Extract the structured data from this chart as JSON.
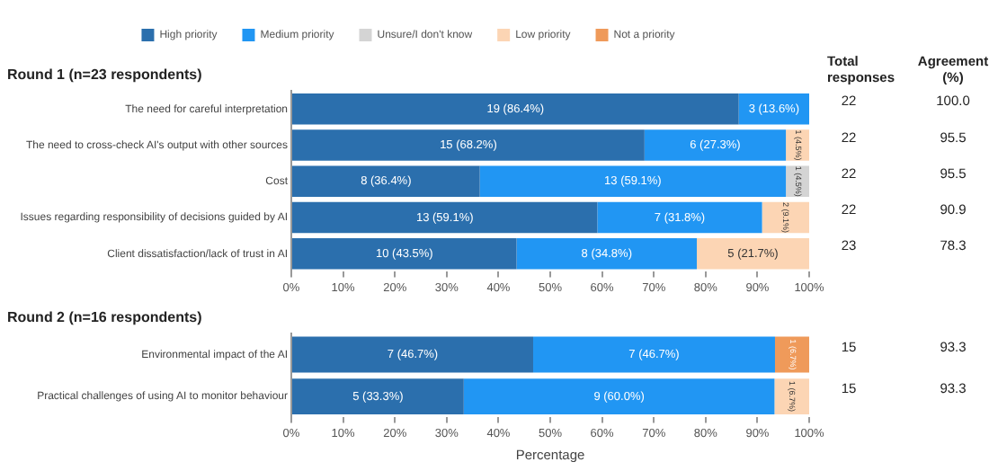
{
  "chart_data": [
    {
      "type": "bar",
      "orientation": "horizontal",
      "stacked": true,
      "title": "Round 1 (n=23 respondents)",
      "legend": "top",
      "grid": false,
      "categories": [
        "The need for careful interpretation",
        "The need to cross-check AI's output with other sources",
        "Cost",
        "Issues regarding responsibility of decisions guided by AI",
        "Client dissatisfaction/lack of trust in AI"
      ],
      "series": [
        {
          "name": "High priority",
          "color": "#2b6fad",
          "values": [
            86.4,
            68.2,
            36.4,
            59.1,
            43.5
          ],
          "value_labels": [
            "19 (86.4%)",
            "15 (68.2%)",
            "8 (36.4%)",
            "13 (59.1%)",
            "10 (43.5%)"
          ]
        },
        {
          "name": "Medium priority",
          "color": "#2196f3",
          "values": [
            13.6,
            27.3,
            59.1,
            31.8,
            34.8
          ],
          "value_labels": [
            "3 (13.6%)",
            "6 (27.3%)",
            "13 (59.1%)",
            "7 (31.8%)",
            "8 (34.8%)"
          ]
        },
        {
          "name": "Unsure/I don't know",
          "color": "#d4d4d4",
          "values": [
            null,
            null,
            4.5,
            null,
            null
          ],
          "value_labels": [
            null,
            null,
            "1 (4.5%)",
            null,
            null
          ]
        },
        {
          "name": "Low priority",
          "color": "#fcd5b4",
          "values": [
            null,
            4.5,
            null,
            9.1,
            21.7
          ],
          "value_labels": [
            null,
            "1 (4.5%)",
            null,
            "2 (9.1%)",
            "5 (21.7%)"
          ]
        },
        {
          "name": "Not a priority",
          "color": "#ef9a5a",
          "values": [
            null,
            null,
            null,
            null,
            null
          ]
        }
      ],
      "xlim": [
        0,
        100
      ],
      "xticks": [
        {
          "value": 0,
          "label": "0%"
        },
        {
          "value": 10,
          "label": "10%"
        },
        {
          "value": 20,
          "label": "20%"
        },
        {
          "value": 30,
          "label": "30%"
        },
        {
          "value": 40,
          "label": "40%"
        },
        {
          "value": 50,
          "label": "50%"
        },
        {
          "value": 60,
          "label": "60%"
        },
        {
          "value": 70,
          "label": "70%"
        },
        {
          "value": 80,
          "label": "80%"
        },
        {
          "value": 90,
          "label": "90%"
        },
        {
          "value": 100,
          "label": "100%"
        }
      ],
      "annotations": [
        "Total responses",
        "Agreement (%)",
        "22",
        "100.0",
        "22",
        "95.5",
        "22",
        "95.5",
        "22",
        "90.9",
        "23",
        "78.3"
      ]
    },
    {
      "type": "bar",
      "orientation": "horizontal",
      "stacked": true,
      "title": "Round 2 (n=16 respondents)",
      "xlabel": "Percentage",
      "grid": false,
      "categories": [
        "Environmental impact of the AI",
        "Practical challenges of using AI to monitor behaviour"
      ],
      "series": [
        {
          "color": "#2b6fad",
          "values": [
            46.7,
            33.3
          ],
          "value_labels": [
            "7 (46.7%)",
            "5 (33.3%)"
          ]
        },
        {
          "color": "#2196f3",
          "values": [
            46.7,
            60.0
          ],
          "value_labels": [
            "7 (46.7%)",
            "9 (60.0%)"
          ]
        },
        {
          "color": "#fcd5b4",
          "values": [
            null,
            6.7
          ],
          "value_labels": [
            null,
            "1 (6.7%)"
          ]
        },
        {
          "color": "#ef9a5a",
          "values": [
            6.7,
            null
          ],
          "value_labels": [
            "1 (6.7%)",
            null
          ]
        }
      ],
      "xlim": [
        0,
        100
      ],
      "xticks": [
        {
          "value": 0,
          "label": "0%"
        },
        {
          "value": 10,
          "label": "10%"
        },
        {
          "value": 20,
          "label": "20%"
        },
        {
          "value": 30,
          "label": "30%"
        },
        {
          "value": 40,
          "label": "40%"
        },
        {
          "value": 50,
          "label": "50%"
        },
        {
          "value": 60,
          "label": "60%"
        },
        {
          "value": 70,
          "label": "70%"
        },
        {
          "value": 80,
          "label": "80%"
        },
        {
          "value": 90,
          "label": "90%"
        },
        {
          "value": 100,
          "label": "100%"
        }
      ],
      "annotations": [
        "15",
        "93.3",
        "15",
        "93.3"
      ]
    }
  ]
}
